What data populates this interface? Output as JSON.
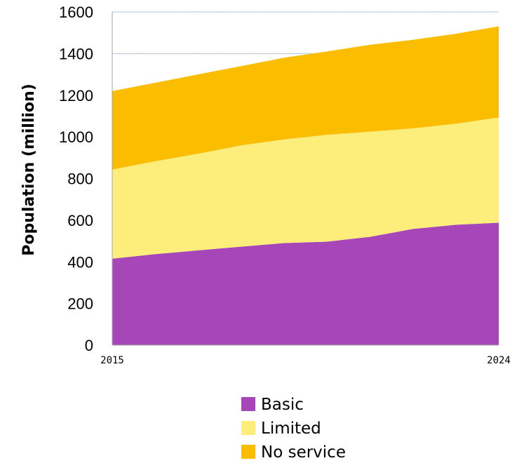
{
  "chart_data": {
    "type": "area",
    "stacked": true,
    "x": [
      2015,
      2016,
      2017,
      2018,
      2019,
      2020,
      2021,
      2022,
      2023,
      2024
    ],
    "x_tick_labels": [
      "2015",
      "2024"
    ],
    "ylabel": "Population (million)",
    "ylim": [
      0,
      1600
    ],
    "yticks": [
      "0",
      "200",
      "400",
      "600",
      "800",
      "1000",
      "1200",
      "1400",
      "1600"
    ],
    "grid": "horizontal dotted",
    "legend_position": "bottom",
    "series": [
      {
        "name": "Basic",
        "color": "#a646b8",
        "values": [
          415,
          437,
          455,
          473,
          490,
          497,
          520,
          558,
          578,
          588
        ]
      },
      {
        "name": "Limited",
        "color": "#fdee7b",
        "values": [
          428,
          446,
          464,
          486,
          498,
          513,
          505,
          483,
          485,
          505
        ]
      },
      {
        "name": "No service",
        "color": "#fbbd00",
        "values": [
          377,
          377,
          381,
          381,
          392,
          400,
          417,
          425,
          432,
          438
        ]
      }
    ]
  }
}
